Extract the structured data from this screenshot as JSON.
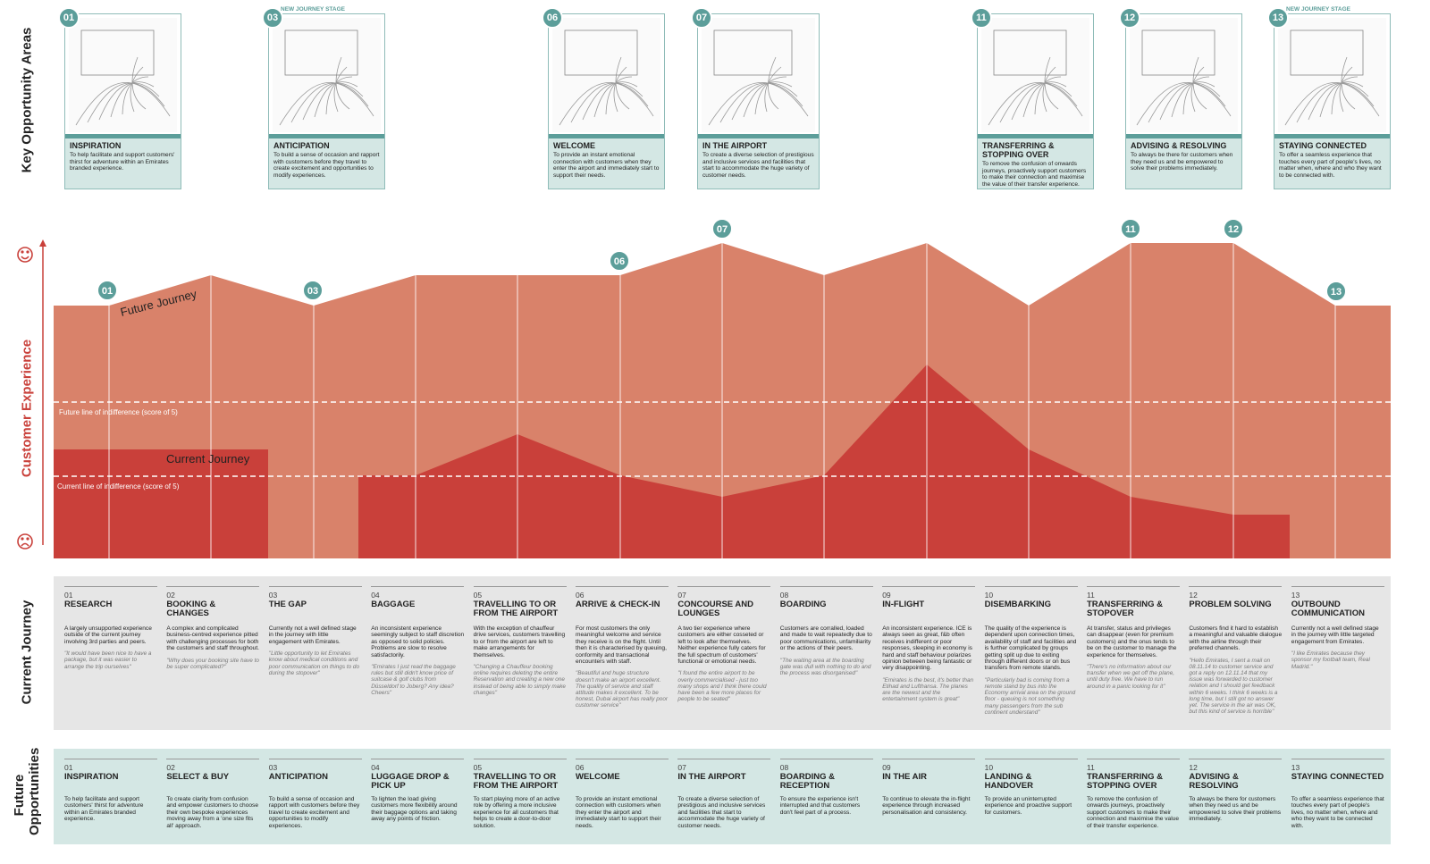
{
  "side_labels": {
    "key_opportunity_areas": "Key Opportunity Areas",
    "customer_experience": "Customer Experience",
    "current_journey": "Current Journey",
    "future_opportunities": "Future Opportunities"
  },
  "cards": [
    {
      "number": "01",
      "title": "INSPIRATION",
      "text": "To help facilitate and support customers' thirst for adventure within an Emirates branded experience."
    },
    {
      "number": "03",
      "tag": "NEW JOURNEY STAGE",
      "title": "ANTICIPATION",
      "text": "To build a sense of occasion and rapport with customers before they travel to create excitement and opportunities to modify experiences."
    },
    {
      "number": "06",
      "title": "WELCOME",
      "text": "To provide an instant emotional connection with customers when they enter the airport and immediately start to support their needs."
    },
    {
      "number": "07",
      "title": "IN THE AIRPORT",
      "text": "To create a diverse selection of prestigious and inclusive services and facilities that start to accommodate the huge variety of customer needs."
    },
    {
      "number": "11",
      "title": "TRANSFERRING & STOPPING OVER",
      "text": "To remove the confusion of onwards journeys, proactively support customers to make their connection and maximise the value of their transfer experience."
    },
    {
      "number": "12",
      "title": "ADVISING & RESOLVING",
      "text": "To always be there for customers when they need us and be empowered to solve their problems immediately."
    },
    {
      "number": "13",
      "tag": "NEW JOURNEY STAGE",
      "title": "STAYING CONNECTED",
      "text": "To offer a seamless experience that touches every part of people's lives, no matter when, where and who they want to be connected with."
    }
  ],
  "chart": {
    "future_label": "Future Journey",
    "current_label": "Current Journey",
    "future_indifference": "Future line of indifference (score of 5)",
    "current_indifference": "Current line of indifference (score of 5)",
    "badges": [
      "01",
      "03",
      "06",
      "07",
      "11",
      "12",
      "13"
    ]
  },
  "current_journey": [
    {
      "number": "01",
      "title": "RESEARCH",
      "text": "A largely unsupported experience outside of the current journey involving 3rd parties and peers.",
      "quote": "\"It would have been nice to have a package, but it was easier to arrange the trip ourselves\""
    },
    {
      "number": "02",
      "title": "BOOKING & CHANGES",
      "text": "A complex and complicated business-centred experience pitted with challenging processes for both the customers and staff throughout.",
      "quote": "\"Why does your booking site have to be super complicated?\""
    },
    {
      "number": "03",
      "title": "THE GAP",
      "text": "Currently not a well defined stage in the journey with little engagement with Emirates.",
      "quote": "\"Little opportunity to let Emirates know about medical conditions and poor communication on things to do during the stopover\""
    },
    {
      "number": "04",
      "title": "BAGGAGE",
      "text": "An inconsistent experience seemingly subject to staff discretion as opposed to solid policies. Problems are slow to resolve satisfactorily.",
      "quote": "\"Emirates I just read the baggage rules but still didn't know price of suitcase & golf clubs from Düsseldorf to Joberg? Any idea? Cheers\""
    },
    {
      "number": "05",
      "title": "TRAVELLING TO OR FROM THE AIRPORT",
      "text": "With the exception of chauffeur drive services, customers travelling to or from the airport are left to make arrangements for themselves.",
      "quote": "\"Changing a Chauffeur booking online requires deleting the entire Reservation and creating a new one instead of being able to simply make changes\""
    },
    {
      "number": "06",
      "title": "ARRIVE & CHECK-IN",
      "text": "For most customers the only meaningful welcome and service they receive is on the flight. Until then it is characterised by queuing, conformity and transactional encounters with staff.",
      "quote": "\"Beautiful and huge structure doesn't make an airport excellent. The quality of service and staff attitude makes it excellent. To be honest, Dubai airport has really poor customer service\""
    },
    {
      "number": "07",
      "title": "CONCOURSE AND LOUNGES",
      "text": "A two tier experience where customers are either cosseted or left to look after themselves. Neither experience fully caters for the full spectrum of customers' functional or emotional needs.",
      "quote": "\"I found the entire airport to be overly commercialised - just too many shops and I think there could have been a few more places for people to be seated\""
    },
    {
      "number": "08",
      "title": "BOARDING",
      "text": "Customers are corralled, loaded and made to wait repeatedly due to poor communications, unfamiliarity or the actions of their peers.",
      "quote": "\"The waiting area at the boarding gate was dull with nothing to do and the process was disorganised\""
    },
    {
      "number": "09",
      "title": "IN-FLIGHT",
      "text": "An inconsistent experience. ICE is always seen as great, f&b often receives indifferent or poor responses, sleeping in economy is hard and staff behaviour polarizes opinion between being fantastic or very disappointing.",
      "quote": "\"Emirates is the best, it's better than Etihad and Lufthansa. The planes are the newest and the entertainment system is great\""
    },
    {
      "number": "10",
      "title": "DISEMBARKING",
      "text": "The quality of the experience is dependent upon connection times, availability of staff and facilities and is further complicated by groups getting split up due to exiting through different doors or on bus transfers from remote stands.",
      "quote": "\"Particularly bad is coming from a remote stand by bus into the Economy arrival area on the ground floor - queuing is not something many passengers from the sub continent understand\""
    },
    {
      "number": "11",
      "title": "TRANSFERRING & STOPOVER",
      "text": "At transfer, status and privileges can disappear (even for premium customers) and the onus tends to be on the customer to manage the experience for themselves.",
      "quote": "\"There's no information about our transfer when we get off the plane, until duty free. We have to run around in a panic looking for it\""
    },
    {
      "number": "12",
      "title": "PROBLEM SOLVING",
      "text": "Customers find it hard to establish a meaningful and valuable dialogue with the airline through their preferred channels.",
      "quote": "\"Hello Emirates, I sent a mail on 08.11.14 to customer service and got a reply on 12.11.14 that my issue was forwarded to customer relation and I should get feedback within 6 weeks. I think 6 weeks is a long time, but I still got no answer yet. The service in the air was OK, but this kind of service is horrible\""
    },
    {
      "number": "13",
      "title": "OUTBOUND COMMUNICATION",
      "text": "Currently not a well defined stage in the journey with little targeted engagement from Emirates.",
      "quote": "\"I like Emirates because they sponsor my football team, Real Madrid.\""
    }
  ],
  "future_opportunities": [
    {
      "number": "01",
      "title": "INSPIRATION",
      "text": "To help facilitate and support customers' thirst for adventure within an Emirates branded experience."
    },
    {
      "number": "02",
      "title": "SELECT & BUY",
      "text": "To create clarity from confusion and empower customers to choose their own bespoke experiences moving away from a 'one size fits all' approach."
    },
    {
      "number": "03",
      "title": "ANTICIPATION",
      "text": "To build a sense of occasion and rapport with customers before they travel to create excitement and opportunities to modify experiences."
    },
    {
      "number": "04",
      "title": "LUGGAGE DROP & PICK UP",
      "text": "To lighten the load giving customers more flexibility around their baggage options and taking away any points of friction."
    },
    {
      "number": "05",
      "title": "TRAVELLING TO OR FROM THE AIRPORT",
      "text": "To start playing more of an active role by offering a more inclusive experience for all customers that helps to create a door-to-door solution."
    },
    {
      "number": "06",
      "title": "WELCOME",
      "text": "To provide an instant emotional connection with customers when they enter the airport and immediately start to support their needs."
    },
    {
      "number": "07",
      "title": "IN THE AIRPORT",
      "text": "To create a diverse selection of prestigious and inclusive services and facilities that start to accommodate the huge variety of customer needs."
    },
    {
      "number": "08",
      "title": "BOARDING & RECEPTION",
      "text": "To ensure the experience isn't interrupted and that customers don't feel part of a process."
    },
    {
      "number": "09",
      "title": "IN THE AIR",
      "text": "To continue to elevate the in-flight experience through increased personalisation and consistency."
    },
    {
      "number": "10",
      "title": "LANDING & HANDOVER",
      "text": "To provide an uninterrupted experience and proactive support for customers."
    },
    {
      "number": "11",
      "title": "TRANSFERRING & STOPPING OVER",
      "text": "To remove the confusion of onwards journeys, proactively support customers to make their connection and maximise the value of their transfer experience."
    },
    {
      "number": "12",
      "title": "ADVISING & RESOLVING",
      "text": "To always be there for customers when they need us and be empowered to solve their problems immediately."
    },
    {
      "number": "13",
      "title": "STAYING CONNECTED",
      "text": "To offer a seamless experience that touches every part of people's lives, no matter when, where and who they want to be connected with."
    }
  ]
}
